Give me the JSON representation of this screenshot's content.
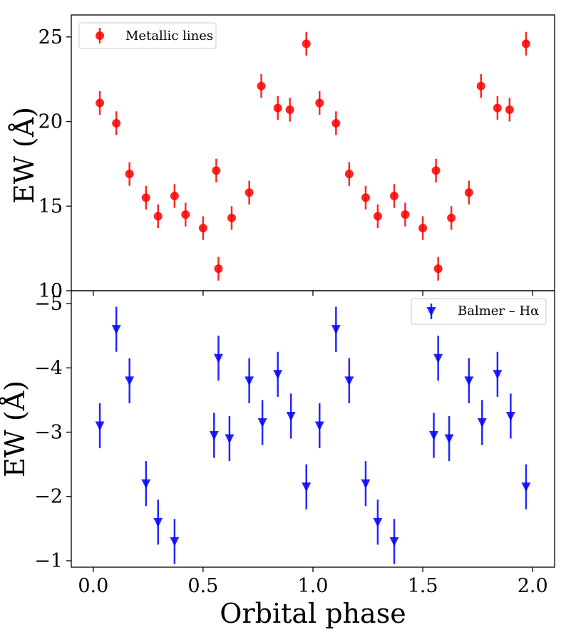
{
  "chart_data": [
    {
      "type": "scatter",
      "panel": "top",
      "marker": "circle",
      "color": "#ff0000",
      "ylabel": "EW (Å)",
      "xlim": [
        -0.1,
        2.1
      ],
      "ylim": [
        10,
        26.3
      ],
      "yticks": [
        10,
        15,
        20,
        25
      ],
      "ytick_labels": [
        "10",
        "15",
        "20",
        "25"
      ],
      "legend": {
        "label": "Metallic lines",
        "position": "top-left"
      },
      "series": [
        {
          "name": "Metallic lines",
          "x": [
            0.03,
            0.105,
            0.165,
            0.24,
            0.295,
            0.37,
            0.42,
            0.5,
            0.56,
            0.57,
            0.63,
            0.71,
            0.765,
            0.84,
            0.895,
            0.97,
            1.03,
            1.105,
            1.165,
            1.24,
            1.295,
            1.37,
            1.42,
            1.5,
            1.56,
            1.57,
            1.63,
            1.71,
            1.765,
            1.84,
            1.895,
            1.97
          ],
          "y": [
            21.1,
            19.9,
            16.9,
            15.5,
            14.4,
            15.6,
            14.5,
            13.7,
            17.1,
            11.3,
            14.3,
            15.8,
            22.1,
            20.8,
            20.7,
            24.6,
            21.1,
            19.9,
            16.9,
            15.5,
            14.4,
            15.6,
            14.5,
            13.7,
            17.1,
            11.3,
            14.3,
            15.8,
            22.1,
            20.8,
            20.7,
            24.6
          ],
          "yerr": 0.7
        }
      ]
    },
    {
      "type": "scatter",
      "panel": "bottom",
      "marker": "triangle-down",
      "color": "#0000ff",
      "xlabel": "Orbital phase",
      "ylabel": "EW (Å)",
      "xlim": [
        -0.1,
        2.1
      ],
      "ylim": [
        -0.9,
        -5.2
      ],
      "yticks": [
        -1,
        -2,
        -3,
        -4,
        -5
      ],
      "ytick_labels": [
        "−1",
        "−2",
        "−3",
        "−4",
        "−5"
      ],
      "xticks": [
        0.0,
        0.5,
        1.0,
        1.5,
        2.0
      ],
      "xtick_labels": [
        "0.0",
        "0.5",
        "1.0",
        "1.5",
        "2.0"
      ],
      "legend": {
        "label": "Balmer – Hα",
        "position": "top-right"
      },
      "series": [
        {
          "name": "Balmer – Hα",
          "x": [
            0.03,
            0.105,
            0.165,
            0.24,
            0.295,
            0.37,
            0.55,
            0.57,
            0.62,
            0.71,
            0.77,
            0.84,
            0.9,
            0.97,
            1.03,
            1.105,
            1.165,
            1.24,
            1.295,
            1.37,
            1.55,
            1.57,
            1.62,
            1.71,
            1.77,
            1.84,
            1.9,
            1.97
          ],
          "y": [
            -3.1,
            -4.6,
            -3.8,
            -2.2,
            -1.6,
            -1.3,
            -2.95,
            -4.15,
            -2.9,
            -3.8,
            -3.15,
            -3.9,
            -3.25,
            -2.15,
            -3.1,
            -4.6,
            -3.8,
            -2.2,
            -1.6,
            -1.3,
            -2.95,
            -4.15,
            -2.9,
            -3.8,
            -3.15,
            -3.9,
            -3.25,
            -2.15
          ],
          "yerr": 0.35
        }
      ]
    }
  ],
  "x_axis_title": "Orbital phase"
}
